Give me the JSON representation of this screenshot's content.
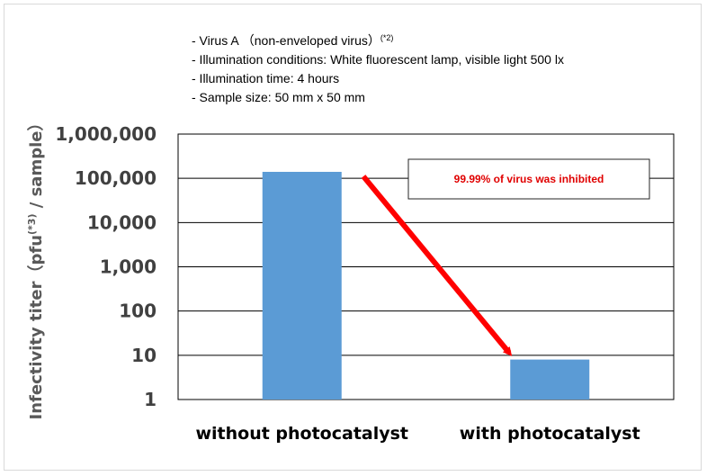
{
  "chart_data": {
    "type": "bar",
    "scale": "log",
    "categories": [
      "without photocatalyst",
      "with photocatalyst"
    ],
    "values": [
      140000,
      8
    ],
    "ylabel": {
      "main": "Infectivity titer（pfu",
      "sup": "(*3)",
      "tail": " / sample）"
    },
    "ylim": [
      1,
      1000000
    ],
    "yticks": [
      {
        "value": 1,
        "label": "1"
      },
      {
        "value": 10,
        "label": "10"
      },
      {
        "value": 100,
        "label": "100"
      },
      {
        "value": 1000,
        "label": "1,000"
      },
      {
        "value": 10000,
        "label": "10,000"
      },
      {
        "value": 100000,
        "label": "100,000"
      },
      {
        "value": 1000000,
        "label": "1,000,000"
      }
    ],
    "grid": true,
    "bar_color": "#5b9bd5",
    "notes": [
      {
        "text": "- Virus A （non-enveloped virus）",
        "sup": "(*2)"
      },
      {
        "text": "- Illumination  conditions: White fluorescent lamp, visible light 500 lx",
        "sup": ""
      },
      {
        "text": "- Illumination  time: 4 hours",
        "sup": ""
      },
      {
        "text": "- Sample size: 50 mm x 50 mm",
        "sup": ""
      }
    ],
    "annotation": {
      "text": "99.99% of virus was inhibited",
      "color": "#e00000",
      "arrow_color": "#ff0000"
    }
  }
}
